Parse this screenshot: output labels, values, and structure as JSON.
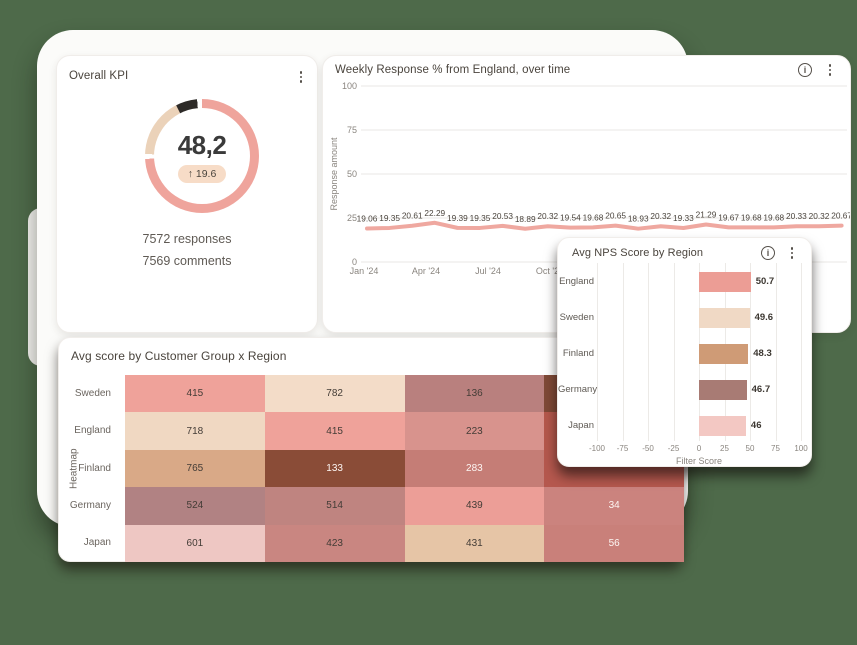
{
  "canvas": {
    "background_color": "#4e6a4a",
    "sheet_color": "#fbfbf9"
  },
  "chart_data": [
    {
      "type": "donut-kpi",
      "title": "Overall KPI",
      "value": "48,2",
      "delta": "↑ 19.6",
      "subtext": [
        "7572 responses",
        "7569 comments"
      ],
      "segments": [
        {
          "name": "main",
          "color": "#efa49c",
          "degrees": 267
        },
        {
          "name": "gap",
          "color": "#ffffff",
          "degrees": 5
        },
        {
          "name": "secondary",
          "color": "#ebd2b9",
          "degrees": 61
        },
        {
          "name": "dark",
          "color": "#2d2a27",
          "degrees": 22
        },
        {
          "name": "gap",
          "color": "#ffffff",
          "degrees": 5
        }
      ]
    },
    {
      "type": "line",
      "title": "Weekly Response % from England, over time",
      "ylabel": "Response amount",
      "ylim": [
        0,
        100
      ],
      "y_ticks": [
        100,
        75,
        50,
        25,
        0
      ],
      "x_ticks": [
        "Jan '24",
        "Apr '24",
        "Jul '24",
        "Oct '24"
      ],
      "line_color": "#efa8a0",
      "values": [
        19.06,
        19.35,
        20.61,
        22.29,
        19.39,
        19.35,
        20.53,
        18.89,
        20.32,
        19.54,
        19.68,
        20.65,
        18.93,
        20.32,
        19.33,
        21.29,
        19.67,
        19.68,
        19.68,
        20.33,
        20.32,
        20.67
      ]
    },
    {
      "type": "bar-horizontal",
      "title": "Avg NPS Score by Region",
      "xlabel": "Filter Score",
      "xlim": [
        -100,
        100
      ],
      "x_ticks": [
        -100,
        -75,
        -50,
        -25,
        0,
        25,
        50,
        75,
        100
      ],
      "categories": [
        "England",
        "Sweden",
        "Finland",
        "Germany",
        "Japan"
      ],
      "values": [
        50.7,
        49.6,
        48.3,
        46.7,
        46
      ],
      "value_labels": [
        "50.7",
        "49.6",
        "48.3",
        "46.7",
        "46"
      ],
      "bar_colors": [
        "#ec9d95",
        "#f0d9c5",
        "#cf9b76",
        "#a87b74",
        "#f3c8c3"
      ]
    },
    {
      "type": "heatmap",
      "title": "Avg score by Customer Group x Region",
      "ylabel": "Heatmap",
      "rows": [
        "Sweden",
        "England",
        "Finland",
        "Germany",
        "Japan"
      ],
      "cells": [
        [
          {
            "v": "415",
            "bg": "#efa29a",
            "fg": "#433c36"
          },
          {
            "v": "782",
            "bg": "#f3dcc8",
            "fg": "#433c36"
          },
          {
            "v": "136",
            "bg": "#b9807e",
            "fg": "#433c36"
          },
          {
            "v": null,
            "bg": "#7f4937",
            "fg": "#fdf6f3"
          }
        ],
        [
          {
            "v": "718",
            "bg": "#f0d8c2",
            "fg": "#433c36"
          },
          {
            "v": "415",
            "bg": "#efa29a",
            "fg": "#433c36"
          },
          {
            "v": "223",
            "bg": "#d8938d",
            "fg": "#433c36"
          },
          {
            "v": null,
            "bg": "#b5584c",
            "fg": "#fdf6f3"
          }
        ],
        [
          {
            "v": "765",
            "bg": "#d9a987",
            "fg": "#433c36"
          },
          {
            "v": "133",
            "bg": "#8a4c37",
            "fg": "#fdf6f3"
          },
          {
            "v": "283",
            "bg": "#c57d76",
            "fg": "#fdf6f3"
          },
          {
            "v": null,
            "bg": "#b5584e",
            "fg": "#fdf6f3"
          }
        ],
        [
          {
            "v": "524",
            "bg": "#b18283",
            "fg": "#433c36"
          },
          {
            "v": "514",
            "bg": "#bf8480",
            "fg": "#433c36"
          },
          {
            "v": "439",
            "bg": "#ec9e97",
            "fg": "#433c36"
          },
          {
            "v": "34",
            "bg": "#cb837e",
            "fg": "#fdf6f3"
          }
        ],
        [
          {
            "v": "601",
            "bg": "#eec7c3",
            "fg": "#433c36"
          },
          {
            "v": "423",
            "bg": "#c98681",
            "fg": "#433c36"
          },
          {
            "v": "431",
            "bg": "#e6c5a6",
            "fg": "#433c36"
          },
          {
            "v": "56",
            "bg": "#c9807a",
            "fg": "#fdf6f3"
          }
        ]
      ]
    }
  ],
  "icons": {
    "info": "i"
  }
}
